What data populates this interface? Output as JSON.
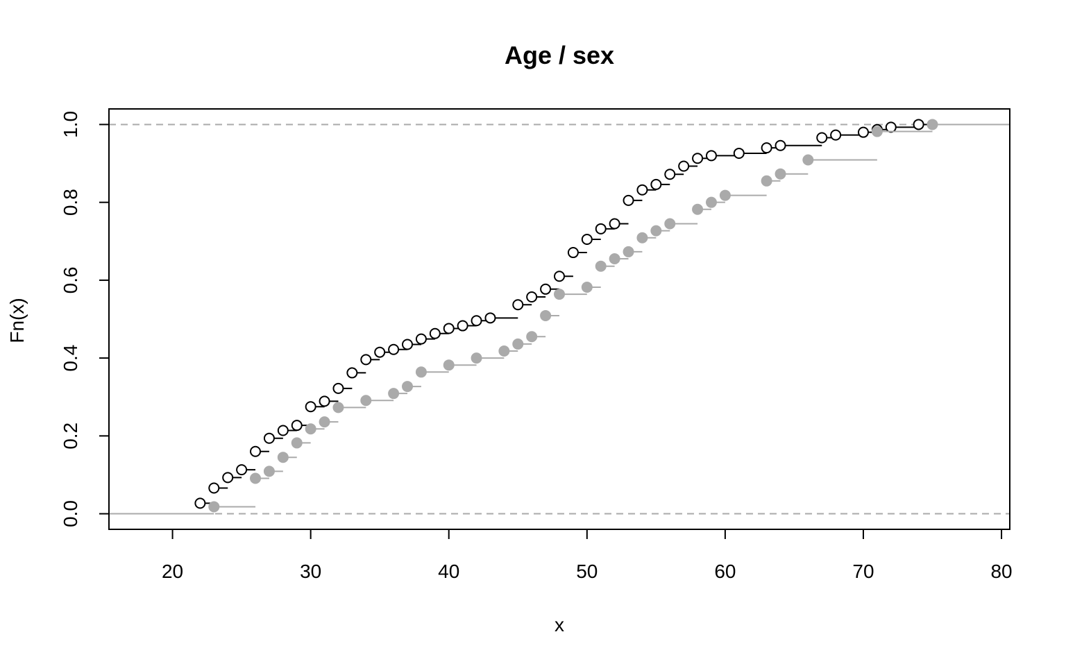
{
  "chart_data": {
    "type": "line",
    "subtype": "ecdf-step",
    "title": "Age / sex",
    "xlabel": "x",
    "ylabel": "Fn(x)",
    "xlim": [
      15.4,
      80.6
    ],
    "ylim": [
      -0.04,
      1.04
    ],
    "xticks": [
      20,
      30,
      40,
      50,
      60,
      70,
      80
    ],
    "yticks": [
      0.0,
      0.2,
      0.4,
      0.6,
      0.8,
      1.0
    ],
    "ytick_labels": [
      "0.0",
      "0.2",
      "0.4",
      "0.6",
      "0.8",
      "1.0"
    ],
    "reference_lines": [
      0,
      1
    ],
    "reference_line_style": "dashed",
    "reference_line_color": "#aaaaaa",
    "grid": false,
    "legend": "none",
    "series": [
      {
        "color": "#000000",
        "marker": "open-circle",
        "x": [
          22,
          23,
          24,
          25,
          26,
          27,
          28,
          29,
          30,
          31,
          32,
          33,
          34,
          35,
          36,
          37,
          38,
          39,
          40,
          41,
          42,
          43,
          45,
          46,
          47,
          48,
          49,
          50,
          51,
          52,
          53,
          54,
          55,
          56,
          57,
          58,
          59,
          61,
          63,
          64,
          67,
          68,
          70,
          71,
          72,
          74
        ],
        "y": [
          0.027,
          0.066,
          0.093,
          0.113,
          0.16,
          0.194,
          0.214,
          0.227,
          0.275,
          0.289,
          0.322,
          0.362,
          0.396,
          0.415,
          0.422,
          0.435,
          0.449,
          0.463,
          0.476,
          0.483,
          0.496,
          0.503,
          0.537,
          0.557,
          0.577,
          0.61,
          0.671,
          0.705,
          0.732,
          0.745,
          0.805,
          0.832,
          0.846,
          0.872,
          0.893,
          0.913,
          0.92,
          0.926,
          0.94,
          0.946,
          0.966,
          0.973,
          0.98,
          0.987,
          0.993,
          1.0
        ]
      },
      {
        "color": "#aaaaaa",
        "marker": "filled-circle",
        "x": [
          23,
          26,
          27,
          28,
          29,
          30,
          31,
          32,
          34,
          36,
          37,
          38,
          40,
          42,
          44,
          45,
          46,
          47,
          48,
          50,
          51,
          52,
          53,
          54,
          55,
          56,
          58,
          59,
          60,
          63,
          64,
          66,
          71,
          75
        ],
        "y": [
          0.018,
          0.091,
          0.109,
          0.145,
          0.182,
          0.218,
          0.236,
          0.273,
          0.291,
          0.309,
          0.327,
          0.364,
          0.382,
          0.4,
          0.418,
          0.436,
          0.455,
          0.509,
          0.564,
          0.582,
          0.636,
          0.655,
          0.673,
          0.709,
          0.727,
          0.745,
          0.782,
          0.8,
          0.818,
          0.855,
          0.873,
          0.909,
          0.982,
          1.0
        ]
      }
    ]
  }
}
